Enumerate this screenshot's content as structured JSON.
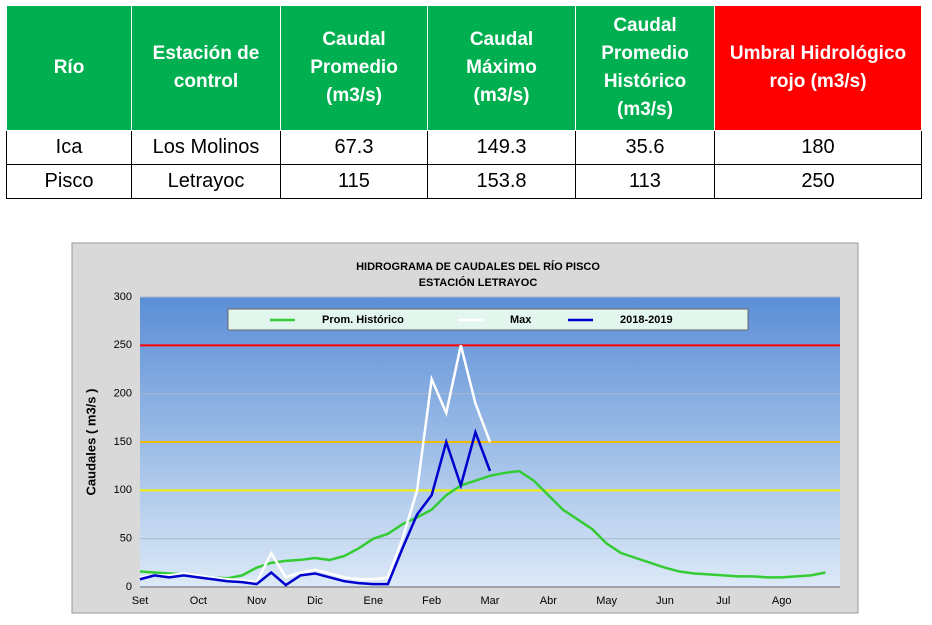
{
  "table": {
    "header": [
      "Río",
      "Estación de control",
      "Caudal Promedio (m3/s)",
      "Caudal Máximo (m3/s)",
      "Caudal Promedio Histórico (m3/s)",
      "Umbral Hidrológico rojo (m3/s)"
    ],
    "rows": [
      [
        "Ica",
        "Los Molinos",
        67.3,
        149.3,
        35.6,
        180
      ],
      [
        "Pisco",
        "Letrayoc",
        115,
        153.8,
        113,
        250
      ]
    ]
  },
  "chart_data": {
    "type": "line",
    "title": "HIDROGRAMA DE CAUDALES DEL RÍO PISCO",
    "subtitle": "ESTACIÓN LETRAYOC",
    "y_label": "Caudales ( m3/s )",
    "categories": [
      "Set",
      null,
      null,
      null,
      "Oct",
      null,
      null,
      null,
      "Nov",
      null,
      null,
      null,
      "Dic",
      null,
      null,
      null,
      "Ene",
      null,
      null,
      null,
      "Feb",
      null,
      null,
      null,
      "Mar",
      null,
      null,
      null,
      "Abr",
      null,
      null,
      null,
      "May",
      null,
      null,
      null,
      "Jun",
      null,
      null,
      null,
      "Jul",
      null,
      null,
      null,
      "Ago",
      null,
      null,
      null
    ],
    "ylim": [
      0,
      300
    ],
    "yticks": [
      0,
      50,
      100,
      150,
      200,
      250,
      300
    ],
    "grid": true,
    "reference_lines": [
      {
        "value": 250,
        "color": "#ff0000"
      },
      {
        "value": 150,
        "color": "#f5b800"
      },
      {
        "value": 100,
        "color": "#f0f000"
      }
    ],
    "series": [
      {
        "name": "Prom. Histórico",
        "color": "#33cc33",
        "values": [
          16,
          15,
          14,
          13,
          12,
          10,
          9,
          12,
          20,
          25,
          27,
          28,
          30,
          28,
          32,
          40,
          50,
          55,
          65,
          72,
          80,
          95,
          105,
          110,
          115,
          118,
          120,
          110,
          95,
          80,
          70,
          60,
          45,
          35,
          30,
          25,
          20,
          16,
          14,
          13,
          12,
          11,
          11,
          10,
          10,
          11,
          12,
          15
        ]
      },
      {
        "name": "Max",
        "color": "#ffffff",
        "values": [
          10,
          12,
          12,
          14,
          12,
          10,
          8,
          7,
          5,
          35,
          10,
          15,
          18,
          14,
          10,
          8,
          8,
          10,
          50,
          100,
          215,
          180,
          250,
          190,
          150,
          null,
          null,
          null,
          null,
          null,
          null,
          null,
          null,
          null,
          null,
          null,
          null,
          null,
          null,
          null,
          null,
          null,
          null,
          null,
          null,
          null,
          null,
          null
        ]
      },
      {
        "name": "2018-2019",
        "color": "#0000cc",
        "values": [
          8,
          12,
          10,
          12,
          10,
          8,
          6,
          5,
          3,
          15,
          2,
          12,
          14,
          10,
          6,
          4,
          3,
          3,
          40,
          75,
          95,
          150,
          105,
          160,
          120,
          null,
          null,
          null,
          null,
          null,
          null,
          null,
          null,
          null,
          null,
          null,
          null,
          null,
          null,
          null,
          null,
          null,
          null,
          null,
          null,
          null,
          null,
          null
        ]
      }
    ]
  }
}
